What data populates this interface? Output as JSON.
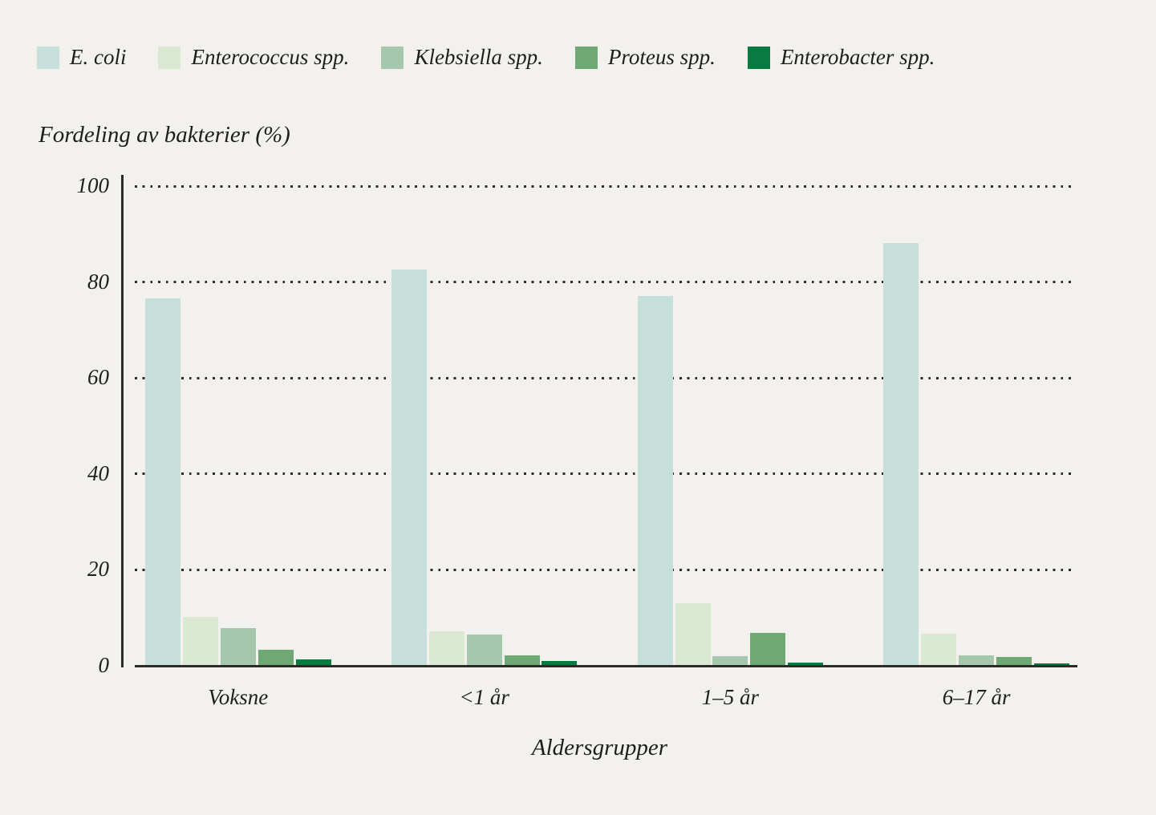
{
  "colors": {
    "background": "#f2f1ed",
    "axis": "#2b2b28",
    "text": "#1e1e1c"
  },
  "chart_data": {
    "type": "bar",
    "title": "",
    "ylabel": "Fordeling av bakterier (%)",
    "xlabel": "Aldersgrupper",
    "categories": [
      "Voksne",
      "<1 år",
      "1–5 år",
      "6–17 år"
    ],
    "series": [
      {
        "name": "E. coli",
        "color": "#c7dfdb",
        "values": [
          76.5,
          82.5,
          77.0,
          88.0
        ]
      },
      {
        "name": "Enterococcus spp.",
        "color": "#dbe9d2",
        "values": [
          10.0,
          7.0,
          12.8,
          6.6
        ]
      },
      {
        "name": "Klebsiella spp.",
        "color": "#a5c7ab",
        "values": [
          7.7,
          6.3,
          1.8,
          2.0
        ]
      },
      {
        "name": "Proteus spp.",
        "color": "#6da875",
        "values": [
          3.2,
          2.0,
          6.7,
          1.7
        ]
      },
      {
        "name": "Enterobacter spp.",
        "color": "#077b40",
        "values": [
          1.1,
          0.8,
          0.5,
          0.4
        ]
      }
    ],
    "ylim": [
      0,
      100
    ],
    "yticks": [
      0,
      20,
      40,
      60,
      80,
      100
    ],
    "grid": "dotted horizontal",
    "legend_position": "top-left"
  }
}
